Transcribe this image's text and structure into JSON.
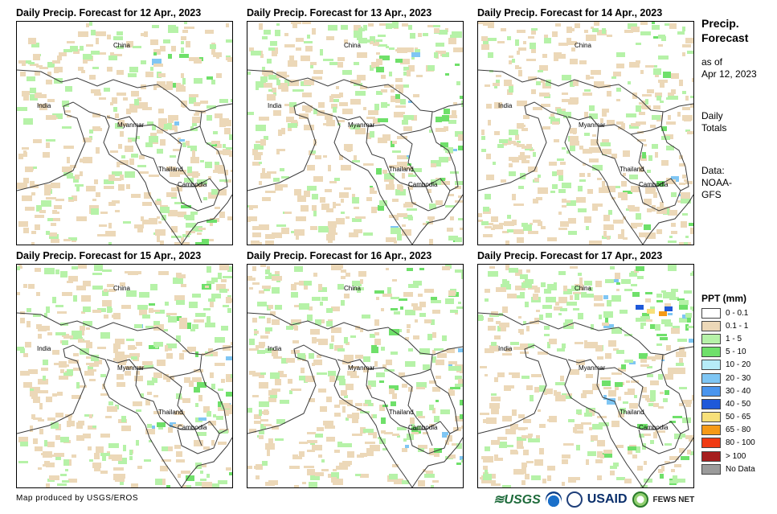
{
  "panels": [
    {
      "title": "Daily Precip. Forecast for 12 Apr., 2023",
      "wet_level": 1
    },
    {
      "title": "Daily Precip. Forecast for 13 Apr., 2023",
      "wet_level": 2
    },
    {
      "title": "Daily Precip. Forecast for 14 Apr., 2023",
      "wet_level": 1
    },
    {
      "title": "Daily Precip. Forecast for 15 Apr., 2023",
      "wet_level": 2
    },
    {
      "title": "Daily Precip. Forecast for 16 Apr., 2023",
      "wet_level": 2
    },
    {
      "title": "Daily Precip. Forecast for 17 Apr., 2023",
      "wet_level": 3
    }
  ],
  "map_labels": {
    "china": "China",
    "india": "India",
    "myanmar": "Myanmar",
    "thailand": "Thailand",
    "cambodia": "Cambodia"
  },
  "sidebar": {
    "title_line1": "Precip.",
    "title_line2": "Forecast",
    "asof_line1": "as of",
    "asof_line2": "Apr 12, 2023",
    "daily_line1": "Daily",
    "daily_line2": "Totals",
    "data_line1": "Data:",
    "data_line2": "NOAA-",
    "data_line3": "GFS"
  },
  "legend": {
    "title": "PPT (mm)",
    "items": [
      {
        "label": "0 - 0.1",
        "color": "#ffffff"
      },
      {
        "label": "0.1 - 1",
        "color": "#ecd8b8"
      },
      {
        "label": "1 - 5",
        "color": "#b6f2a8"
      },
      {
        "label": "5 - 10",
        "color": "#6fe06a"
      },
      {
        "label": "10 - 20",
        "color": "#b6ecf7"
      },
      {
        "label": "20 - 30",
        "color": "#7fc6f4"
      },
      {
        "label": "30 - 40",
        "color": "#4a95ee"
      },
      {
        "label": "40 - 50",
        "color": "#1f59d9"
      },
      {
        "label": "50 - 65",
        "color": "#f7e07a"
      },
      {
        "label": "65 - 80",
        "color": "#f59a17"
      },
      {
        "label": "80 - 100",
        "color": "#f03a12"
      },
      {
        "label": "> 100",
        "color": "#a61e1e"
      },
      {
        "label": "No Data",
        "color": "#9b9b9b"
      }
    ]
  },
  "footer": {
    "credit": "Map produced by USGS/EROS",
    "logo_usgs": "≋USGS",
    "logo_usaid": "USAID",
    "logo_fews": "FEWS NET"
  }
}
